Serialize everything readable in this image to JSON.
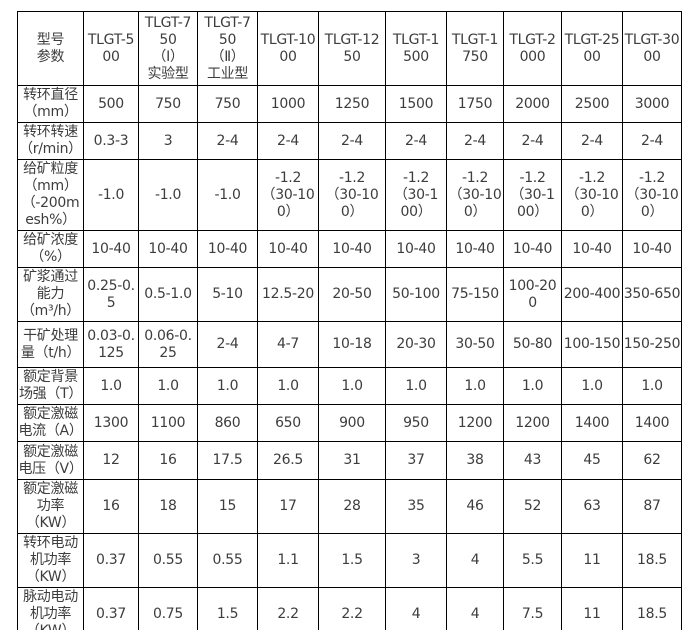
{
  "table": {
    "corner_header": "型号\n参数",
    "column_headers": [
      "TLGT-5\n00",
      "TLGT-7\n50\n（Ⅰ）\n实验型",
      "TLGT-7\n50\n（Ⅱ）\n工业型",
      "TLGT-10\n00",
      "TLGT-12\n50",
      "TLGT-1\n500",
      "TLGT-1\n750",
      "TLGT-2\n000",
      "TLGT-25\n00",
      "TLGT-30\n00"
    ],
    "rows": [
      {
        "label": "转环直径\n（mm）",
        "values": [
          "500",
          "750",
          "750",
          "1000",
          "1250",
          "1500",
          "1750",
          "2000",
          "2500",
          "3000"
        ]
      },
      {
        "label": "转环转速\n（r/min）",
        "values": [
          "0.3-3",
          "3",
          "2-4",
          "2-4",
          "2-4",
          "2-4",
          "2-4",
          "2-4",
          "2-4",
          "2-4"
        ]
      },
      {
        "label": "给矿粒度\n（mm）\n（-200m\nesh%）",
        "values": [
          "-1.0",
          "-1.0",
          "-1.0",
          "-1.2\n（30-10\n0）",
          "-1.2\n（30-10\n0）",
          "-1.2\n（30-1\n00）",
          "-1.2\n（30-10\n0）",
          "-1.2\n（30-1\n00）",
          "-1.2\n（30-10\n0）",
          "-1.2\n（30-10\n0）"
        ]
      },
      {
        "label": "给矿浓度\n（%）",
        "values": [
          "10-40",
          "10-40",
          "10-40",
          "10-40",
          "10-40",
          "10-40",
          "10-40",
          "10-40",
          "10-40",
          "10-40"
        ]
      },
      {
        "label": "矿浆通过\n能力\n（m³/h）",
        "values": [
          "0.25-0.\n5",
          "0.5-1.0",
          "5-10",
          "12.5-20",
          "20-50",
          "50-100",
          "75-150",
          "100-20\n0",
          "200-400",
          "350-650"
        ]
      },
      {
        "label": "干矿处理\n量（t/h）",
        "values": [
          "0.03-0.\n125",
          "0.06-0.\n25",
          "2-4",
          "4-7",
          "10-18",
          "20-30",
          "30-50",
          "50-80",
          "100-150",
          "150-250"
        ]
      },
      {
        "label": "额定背景\n场强（T）",
        "values": [
          "1.0",
          "1.0",
          "1.0",
          "1.0",
          "1.0",
          "1.0",
          "1.0",
          "1.0",
          "1.0",
          "1.0"
        ]
      },
      {
        "label": "额定激磁\n电流（A）",
        "values": [
          "1300",
          "1100",
          "860",
          "650",
          "900",
          "950",
          "1200",
          "1200",
          "1400",
          "1400"
        ]
      },
      {
        "label": "额定激磁\n电压（V）",
        "values": [
          "12",
          "16",
          "17.5",
          "26.5",
          "31",
          "37",
          "38",
          "43",
          "45",
          "62"
        ]
      },
      {
        "label": "额定激磁\n功率\n（KW）",
        "values": [
          "16",
          "18",
          "15",
          "17",
          "28",
          "35",
          "46",
          "52",
          "63",
          "87"
        ]
      },
      {
        "label": "转环电动\n机功率\n（KW）",
        "values": [
          "0.37",
          "0.55",
          "0.55",
          "1.1",
          "1.5",
          "3",
          "4",
          "5.5",
          "11",
          "18.5"
        ]
      },
      {
        "label": "脉动电动\n机功率\n（KW）",
        "values": [
          "0.37",
          "0.75",
          "1.5",
          "2.2",
          "2.2",
          "4",
          "4",
          "7.5",
          "11",
          "18.5"
        ]
      }
    ]
  }
}
